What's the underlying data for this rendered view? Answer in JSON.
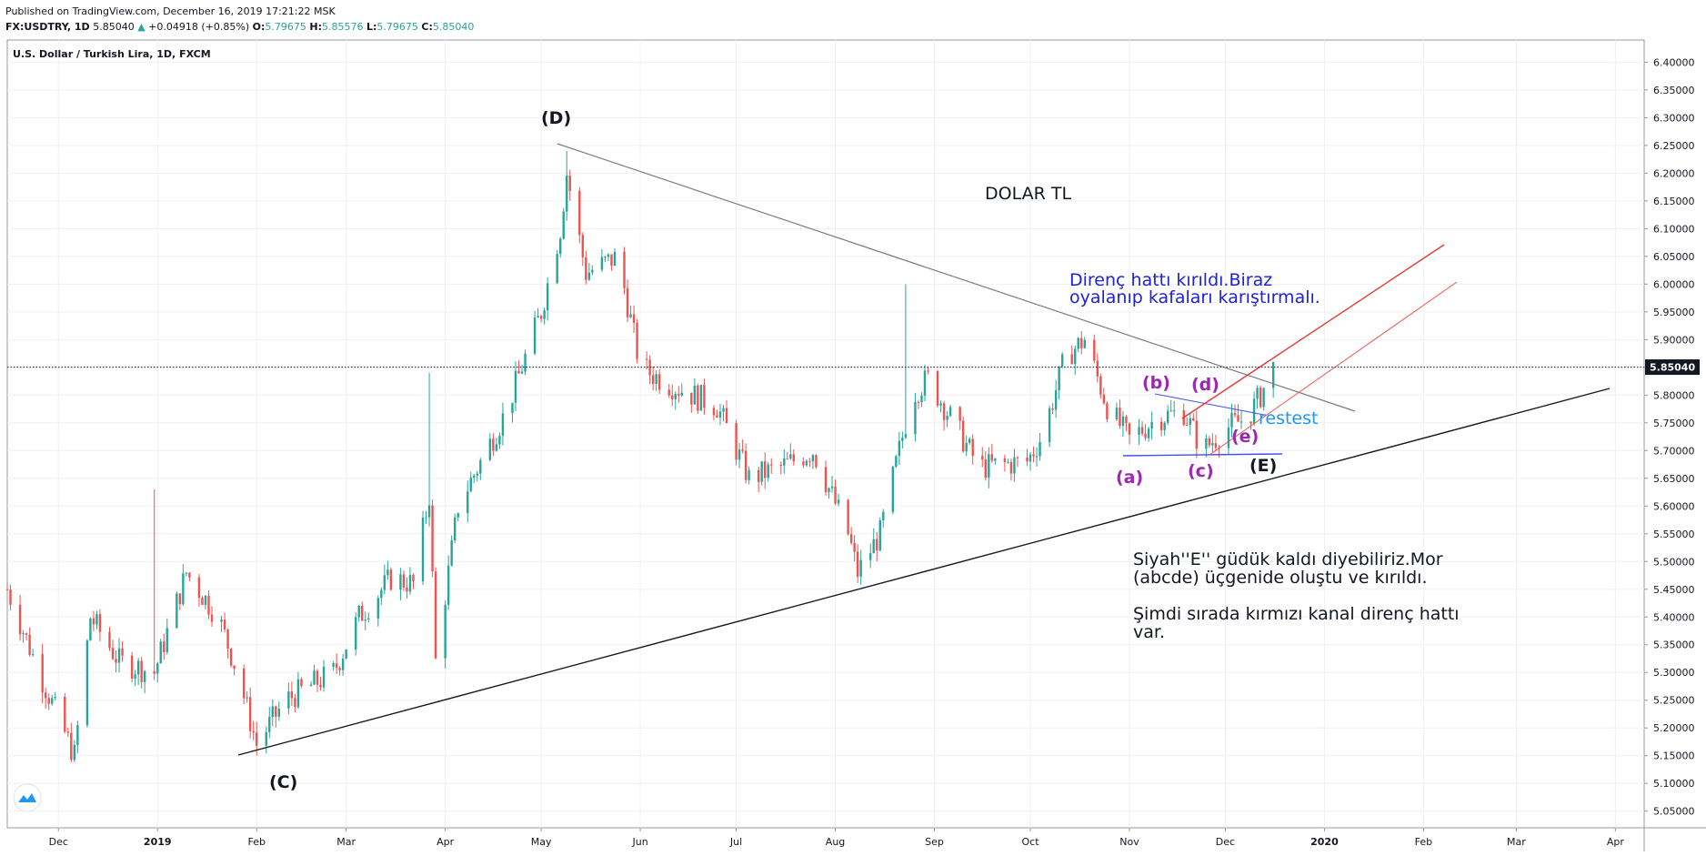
{
  "header": {
    "published": "Published on TradingView.com, December 16, 2019 17:21:22 MSK",
    "symbol": "FX:USDTRY, 1D",
    "last": "5.85040",
    "change_arrow": "▲",
    "change": "+0.04918 (+0.85%)",
    "o_label": "O:",
    "o_val": "5.79675",
    "h_label": "H:",
    "h_val": "5.85576",
    "l_label": "L:",
    "l_val": "5.79675",
    "c_label": "C:",
    "c_val": "5.85040"
  },
  "chart_data": {
    "type": "candlestick",
    "title": "U.S. Dollar / Turkish Lira, 1D, FXCM",
    "ylim": [
      5.02,
      6.44
    ],
    "y_ticks": [
      "6.40000",
      "6.35000",
      "6.30000",
      "6.25000",
      "6.20000",
      "6.15000",
      "6.10000",
      "6.05000",
      "6.00000",
      "5.95000",
      "5.90000",
      "5.85000",
      "5.80000",
      "5.75000",
      "5.70000",
      "5.65000",
      "5.60000",
      "5.55000",
      "5.50000",
      "5.45000",
      "5.40000",
      "5.35000",
      "5.30000",
      "5.25000",
      "5.20000",
      "5.15000",
      "5.10000",
      "5.05000"
    ],
    "x_ticks": [
      "Dec",
      "2019",
      "Feb",
      "Mar",
      "Apr",
      "May",
      "Jun",
      "Jul",
      "Aug",
      "Sep",
      "Oct",
      "Nov",
      "Dec",
      "2020",
      "Feb",
      "Mar",
      "Apr"
    ],
    "x_range": [
      "2018-11-15",
      "2020-04-10"
    ],
    "last_price": 5.8504,
    "last_price_label": "5.85040",
    "colors": {
      "up": "#26a69a",
      "down": "#ef5350"
    },
    "price_path": [
      [
        "2018-11-15",
        5.45
      ],
      [
        "2018-11-25",
        5.3
      ],
      [
        "2018-12-06",
        5.15
      ],
      [
        "2018-12-11",
        5.4
      ],
      [
        "2018-12-20",
        5.32
      ],
      [
        "2018-12-31",
        5.3
      ],
      [
        "2019-01-10",
        5.48
      ],
      [
        "2019-01-20",
        5.4
      ],
      [
        "2019-01-26",
        5.3
      ],
      [
        "2019-02-01",
        5.17
      ],
      [
        "2019-02-10",
        5.25
      ],
      [
        "2019-02-25",
        5.3
      ],
      [
        "2019-03-05",
        5.4
      ],
      [
        "2019-03-15",
        5.47
      ],
      [
        "2019-03-22",
        5.46
      ],
      [
        "2019-03-27",
        5.62
      ],
      [
        "2019-03-29",
        5.32
      ],
      [
        "2019-04-05",
        5.6
      ],
      [
        "2019-04-20",
        5.77
      ],
      [
        "2019-05-01",
        5.95
      ],
      [
        "2019-05-07",
        6.1
      ],
      [
        "2019-05-09",
        6.2
      ],
      [
        "2019-05-15",
        6.02
      ],
      [
        "2019-05-25",
        6.05
      ],
      [
        "2019-06-01",
        5.85
      ],
      [
        "2019-06-10",
        5.82
      ],
      [
        "2019-06-25",
        5.78
      ],
      [
        "2019-07-05",
        5.65
      ],
      [
        "2019-07-15",
        5.67
      ],
      [
        "2019-07-25",
        5.7
      ],
      [
        "2019-08-05",
        5.55
      ],
      [
        "2019-08-08",
        5.48
      ],
      [
        "2019-08-15",
        5.55
      ],
      [
        "2019-08-25",
        5.8
      ],
      [
        "2019-08-30",
        5.83
      ],
      [
        "2019-09-05",
        5.77
      ],
      [
        "2019-09-15",
        5.67
      ],
      [
        "2019-09-30",
        5.68
      ],
      [
        "2019-10-05",
        5.73
      ],
      [
        "2019-10-12",
        5.87
      ],
      [
        "2019-10-18",
        5.9
      ],
      [
        "2019-10-25",
        5.78
      ],
      [
        "2019-11-01",
        5.72
      ],
      [
        "2019-11-10",
        5.76
      ],
      [
        "2019-11-18",
        5.77
      ],
      [
        "2019-11-24",
        5.7
      ],
      [
        "2019-12-01",
        5.74
      ],
      [
        "2019-12-08",
        5.76
      ],
      [
        "2019-12-12",
        5.8
      ],
      [
        "2019-12-16",
        5.85
      ]
    ],
    "annotations": [
      {
        "id": "label-d-upper",
        "text": "(D)"
      },
      {
        "id": "label-c-upper",
        "text": "(C)"
      },
      {
        "id": "label-e-upper",
        "text": "(E)"
      },
      {
        "id": "label-a-lower",
        "text": "(a)"
      },
      {
        "id": "label-b-lower",
        "text": "(b)"
      },
      {
        "id": "label-c-lower",
        "text": "(c)"
      },
      {
        "id": "label-d-lower",
        "text": "(d)"
      },
      {
        "id": "label-e-lower",
        "text": "(e)"
      },
      {
        "id": "title-note",
        "text": "DOLAR TL"
      },
      {
        "id": "resistance-note-1",
        "text": "Direnç hattı kırıldı.Biraz"
      },
      {
        "id": "resistance-note-2",
        "text": "oyalanıp kafaları karıştırmalı."
      },
      {
        "id": "retest-note",
        "text": "restest"
      },
      {
        "id": "comment-1",
        "text": "Siyah''E'' güdük kaldı diyebiliriz.Mor"
      },
      {
        "id": "comment-2",
        "text": "(abcde) üçgenide oluştu ve kırıldı."
      },
      {
        "id": "comment-3",
        "text": "Şimdi sırada kırmızı kanal direnç hattı"
      },
      {
        "id": "comment-4",
        "text": "var."
      }
    ]
  }
}
